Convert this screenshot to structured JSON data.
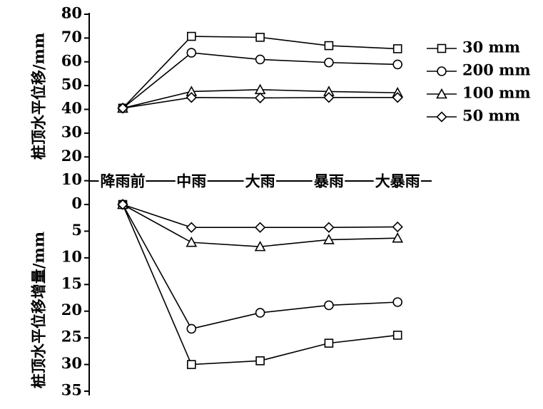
{
  "chart_data": [
    {
      "type": "line",
      "ylabel": "桩顶水平位移/mm",
      "categories": [
        "降雨前",
        "中雨",
        "大雨",
        "暴雨",
        "大暴雨"
      ],
      "ylim": [
        0,
        80
      ],
      "yticks": [
        10,
        20,
        30,
        40,
        50,
        60,
        70,
        80
      ],
      "inverted": false,
      "legend": "right",
      "series": [
        {
          "name": "30 mm",
          "color": "#000000",
          "marker": "square",
          "values": [
            40.5,
            70.7,
            70.3,
            66.8,
            65.5
          ]
        },
        {
          "name": "200 mm",
          "color": "#000000",
          "marker": "circle",
          "values": [
            40.5,
            63.8,
            61,
            59.7,
            58.9
          ]
        },
        {
          "name": "100 mm",
          "color": "#000000",
          "marker": "triangle",
          "values": [
            40.5,
            47.5,
            48.3,
            47.5,
            47
          ]
        },
        {
          "name": "50 mm",
          "color": "#000000",
          "marker": "diamond",
          "values": [
            40.5,
            45,
            44.8,
            45,
            45
          ]
        }
      ]
    },
    {
      "type": "line",
      "ylabel": "桩顶水平位移增量/mm",
      "ylim": [
        0,
        35
      ],
      "yticks": [
        0,
        5,
        10,
        15,
        20,
        25,
        30,
        35
      ],
      "inverted": true,
      "series": [
        {
          "name": "30 mm",
          "color": "#000000",
          "marker": "square",
          "values": [
            0,
            30,
            29.3,
            26,
            24.5
          ]
        },
        {
          "name": "200 mm",
          "color": "#000000",
          "marker": "circle",
          "values": [
            0,
            23.3,
            20.3,
            18.9,
            18.3
          ]
        },
        {
          "name": "100 mm",
          "color": "#000000",
          "marker": "triangle",
          "values": [
            0,
            7.1,
            7.9,
            6.6,
            6.3
          ]
        },
        {
          "name": "50 mm",
          "color": "#000000",
          "marker": "diamond",
          "values": [
            0,
            4.3,
            4.3,
            4.3,
            4.2
          ]
        }
      ]
    }
  ]
}
